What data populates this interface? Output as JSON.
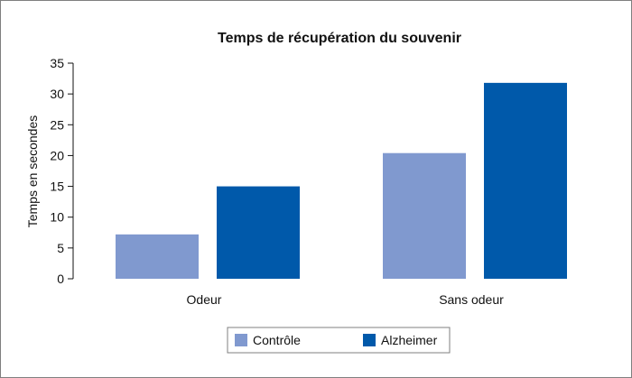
{
  "chart_data": {
    "type": "bar",
    "title": "Temps de récupération du souvenir",
    "xlabel": "",
    "ylabel": "Temps en secondes",
    "categories": [
      "Odeur",
      "Sans odeur"
    ],
    "series": [
      {
        "name": "Contrôle",
        "values": [
          7.2,
          20.4
        ],
        "color": "#8099cf"
      },
      {
        "name": "Alzheimer",
        "values": [
          15,
          31.8
        ],
        "color": "#0059aa"
      }
    ],
    "ylim": [
      0,
      35
    ],
    "yticks": [
      0,
      5,
      10,
      15,
      20,
      25,
      30,
      35
    ],
    "grid": false,
    "legend_position": "bottom-right"
  }
}
